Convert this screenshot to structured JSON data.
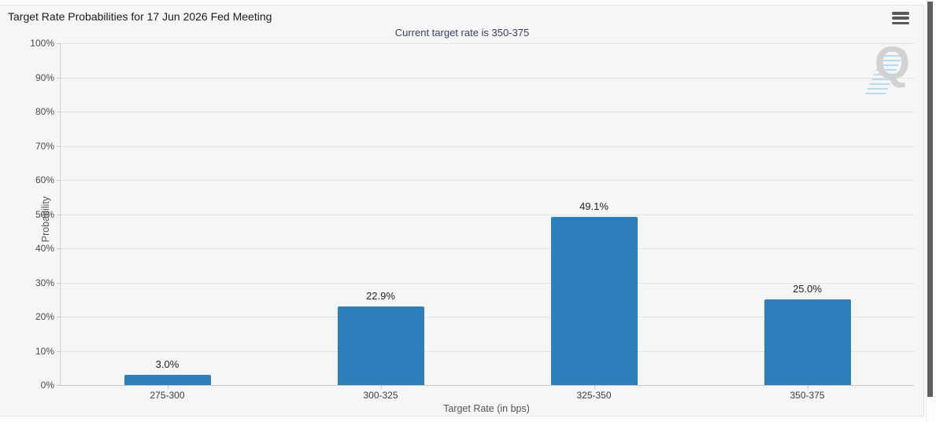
{
  "header": {
    "title": "Target Rate Probabilities for 17 Jun 2026 Fed Meeting"
  },
  "watermark": {
    "letter": "Q"
  },
  "colors": {
    "bar": "#2d7fbb",
    "subtitle_text": "#373f68",
    "panel_background": "#f6f6f6",
    "gridline": "#d4d4d4",
    "scrollbar_thumb": "#5d5f61"
  },
  "chart_data": {
    "type": "bar",
    "title": "Target Rate Probabilities for 17 Jun 2026 Fed Meeting",
    "subtitle": "Current target rate is 350-375",
    "categories": [
      "275-300",
      "300-325",
      "325-350",
      "350-375"
    ],
    "values": [
      3.0,
      22.9,
      49.1,
      25.0
    ],
    "value_labels": [
      "3.0%",
      "22.9%",
      "49.1%",
      "25.0%"
    ],
    "xlabel": "Target Rate (in bps)",
    "ylabel": "Probability",
    "ylim": [
      0,
      100
    ],
    "ytick_step": 10,
    "ytick_suffix": "%",
    "grid": "horizontal-dotted",
    "legend": "none",
    "bar_color": "#2d7fbb"
  }
}
